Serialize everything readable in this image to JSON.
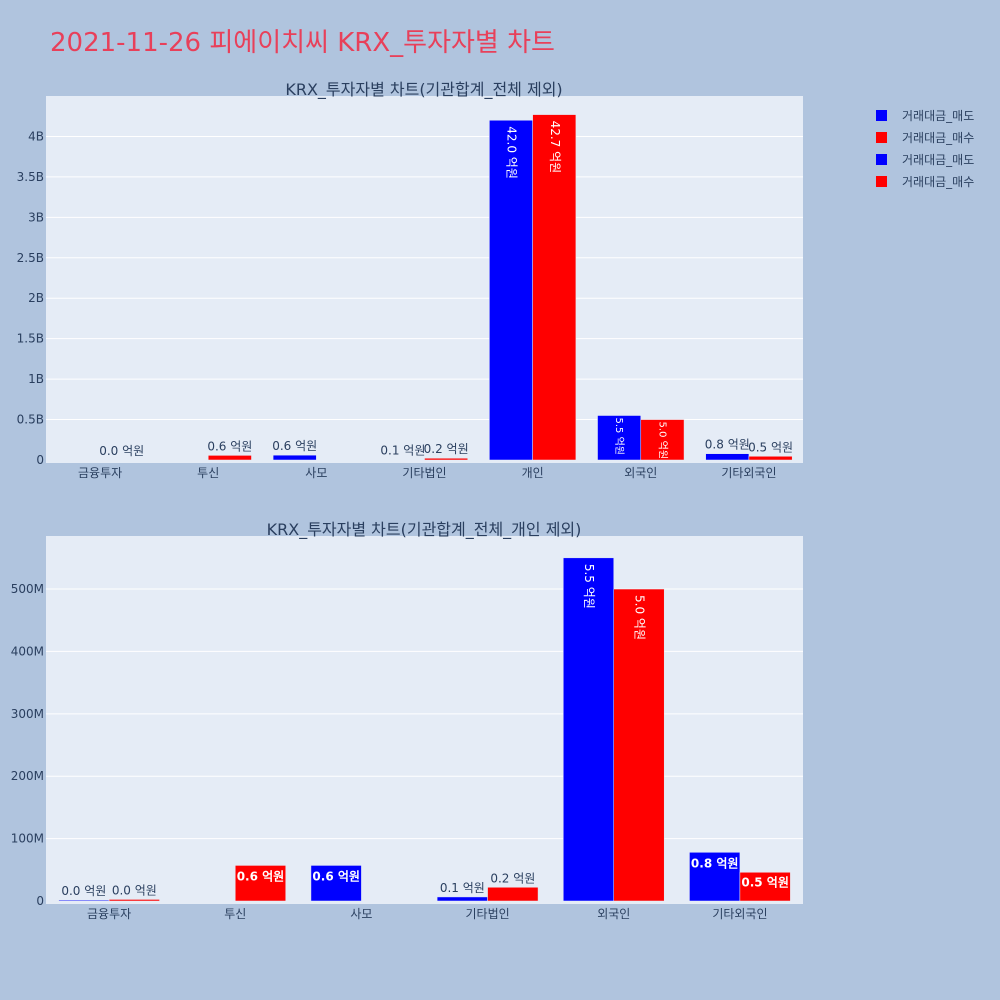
{
  "page_title": "2021-11-26 피에이치씨 KRX_투자자별 차트",
  "colors": {
    "sell": "#0000ff",
    "buy": "#ff0000",
    "plot_bg": "#e5ecf6",
    "paper_bg": "#b0c4de",
    "text": "#2a3f5f",
    "title": "#e8405a"
  },
  "legend": {
    "placement": "top-right",
    "items": [
      {
        "label": "거래대금_매도",
        "color": "#0000ff"
      },
      {
        "label": "거래대금_매수",
        "color": "#ff0000"
      },
      {
        "label": "거래대금_매도",
        "color": "#0000ff"
      },
      {
        "label": "거래대금_매수",
        "color": "#ff0000"
      }
    ]
  },
  "chart_data": [
    {
      "type": "bar",
      "title": "KRX_투자자별 차트(기관합계_전체 제외)",
      "categories": [
        "금융투자",
        "투신",
        "사모",
        "기타법인",
        "개인",
        "외국인",
        "기타외국인"
      ],
      "ylim": [
        0,
        4500000000
      ],
      "yticks": [
        0,
        500000000,
        1000000000,
        1500000000,
        2000000000,
        2500000000,
        3000000000,
        3500000000,
        4000000000
      ],
      "ytick_labels": [
        "0",
        "0.5B",
        "1B",
        "1.5B",
        "2B",
        "2.5B",
        "3B",
        "3.5B",
        "4B"
      ],
      "grid": true,
      "series": [
        {
          "name": "거래대금_매도",
          "color": "#0000ff",
          "values": [
            0,
            0,
            60000000,
            6000000,
            4200000000,
            550000000,
            78000000
          ],
          "labels": [
            "",
            "",
            "0.6 억원",
            "0.1 억원",
            "42.0 억원",
            "5.5 억원",
            "0.8 억원"
          ]
        },
        {
          "name": "거래대금_매수",
          "color": "#ff0000",
          "values": [
            3000000,
            57000000,
            0,
            22000000,
            4270000000,
            500000000,
            46000000
          ],
          "labels": [
            "0.0 억원",
            "0.6 억원",
            "",
            "0.2 억원",
            "42.7 억원",
            "5.0 억원",
            "0.5 억원"
          ]
        }
      ]
    },
    {
      "type": "bar",
      "title": "KRX_투자자별 차트(기관합계_전체_개인 제외)",
      "categories": [
        "금융투자",
        "투신",
        "사모",
        "기타법인",
        "외국인",
        "기타외국인"
      ],
      "ylim": [
        0,
        585000000
      ],
      "yticks": [
        0,
        100000000,
        200000000,
        300000000,
        400000000,
        500000000
      ],
      "ytick_labels": [
        "0",
        "100M",
        "200M",
        "300M",
        "400M",
        "500M"
      ],
      "grid": true,
      "series": [
        {
          "name": "거래대금_매도",
          "color": "#0000ff",
          "values": [
            1500000,
            0,
            57000000,
            6500000,
            550000000,
            78000000
          ],
          "labels": [
            "0.0 억원",
            "",
            "0.6 억원",
            "0.1 억원",
            "5.5 억원",
            "0.8 억원"
          ]
        },
        {
          "name": "거래대금_매수",
          "color": "#ff0000",
          "values": [
            2500000,
            57000000,
            0,
            22000000,
            500000000,
            46000000
          ],
          "labels": [
            "0.0 억원",
            "0.6 억원",
            "",
            "0.2 억원",
            "5.0 억원",
            "0.5 억원"
          ]
        }
      ]
    }
  ]
}
